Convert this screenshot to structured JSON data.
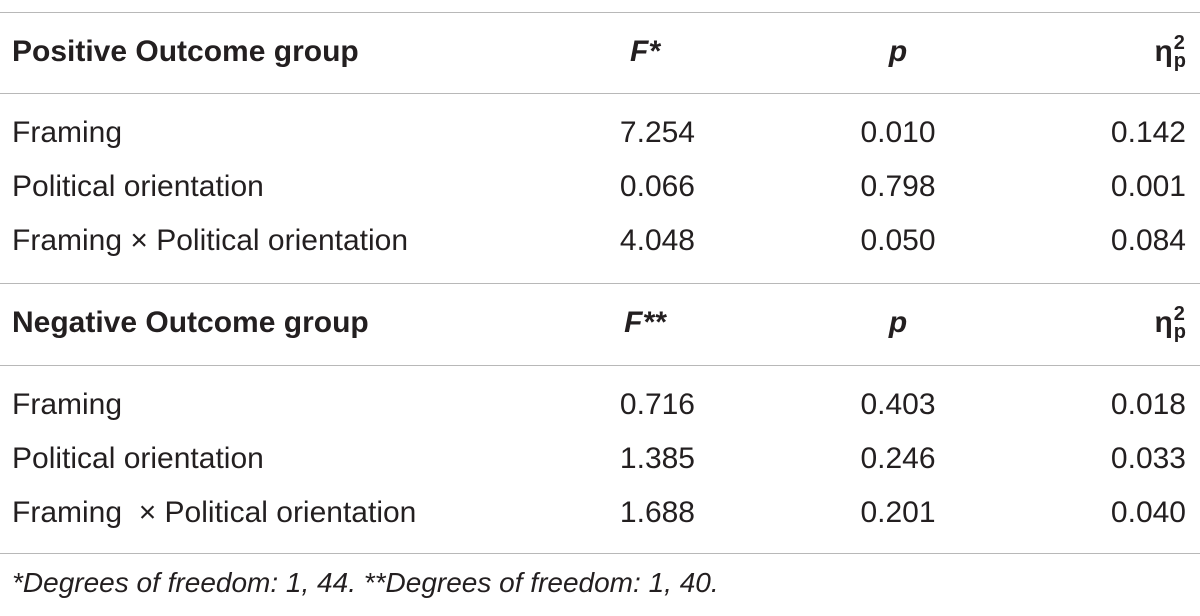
{
  "sections": [
    {
      "header": {
        "label": "Positive Outcome group",
        "f": "F*",
        "p": "p",
        "eta": {
          "symbol": "η",
          "sup": "2",
          "sub": "p"
        }
      },
      "rows": [
        [
          "Framing",
          "7.254",
          "0.010",
          "0.142"
        ],
        [
          "Political orientation",
          "0.066",
          "0.798",
          "0.001"
        ],
        [
          "Framing × Political orientation",
          "4.048",
          "0.050",
          "0.084"
        ]
      ]
    },
    {
      "header": {
        "label": "Negative Outcome group",
        "f": "F**",
        "p": "p",
        "eta": {
          "symbol": "η",
          "sup": "2",
          "sub": "p"
        }
      },
      "rows": [
        [
          "Framing",
          "0.716",
          "0.403",
          "0.018"
        ],
        [
          "Political orientation",
          "1.385",
          "0.246",
          "0.033"
        ],
        [
          "Framing  × Political orientation",
          "1.688",
          "0.201",
          "0.040"
        ]
      ]
    }
  ],
  "footnote": "*Degrees of freedom: 1, 44. **Degrees of freedom: 1, 40."
}
